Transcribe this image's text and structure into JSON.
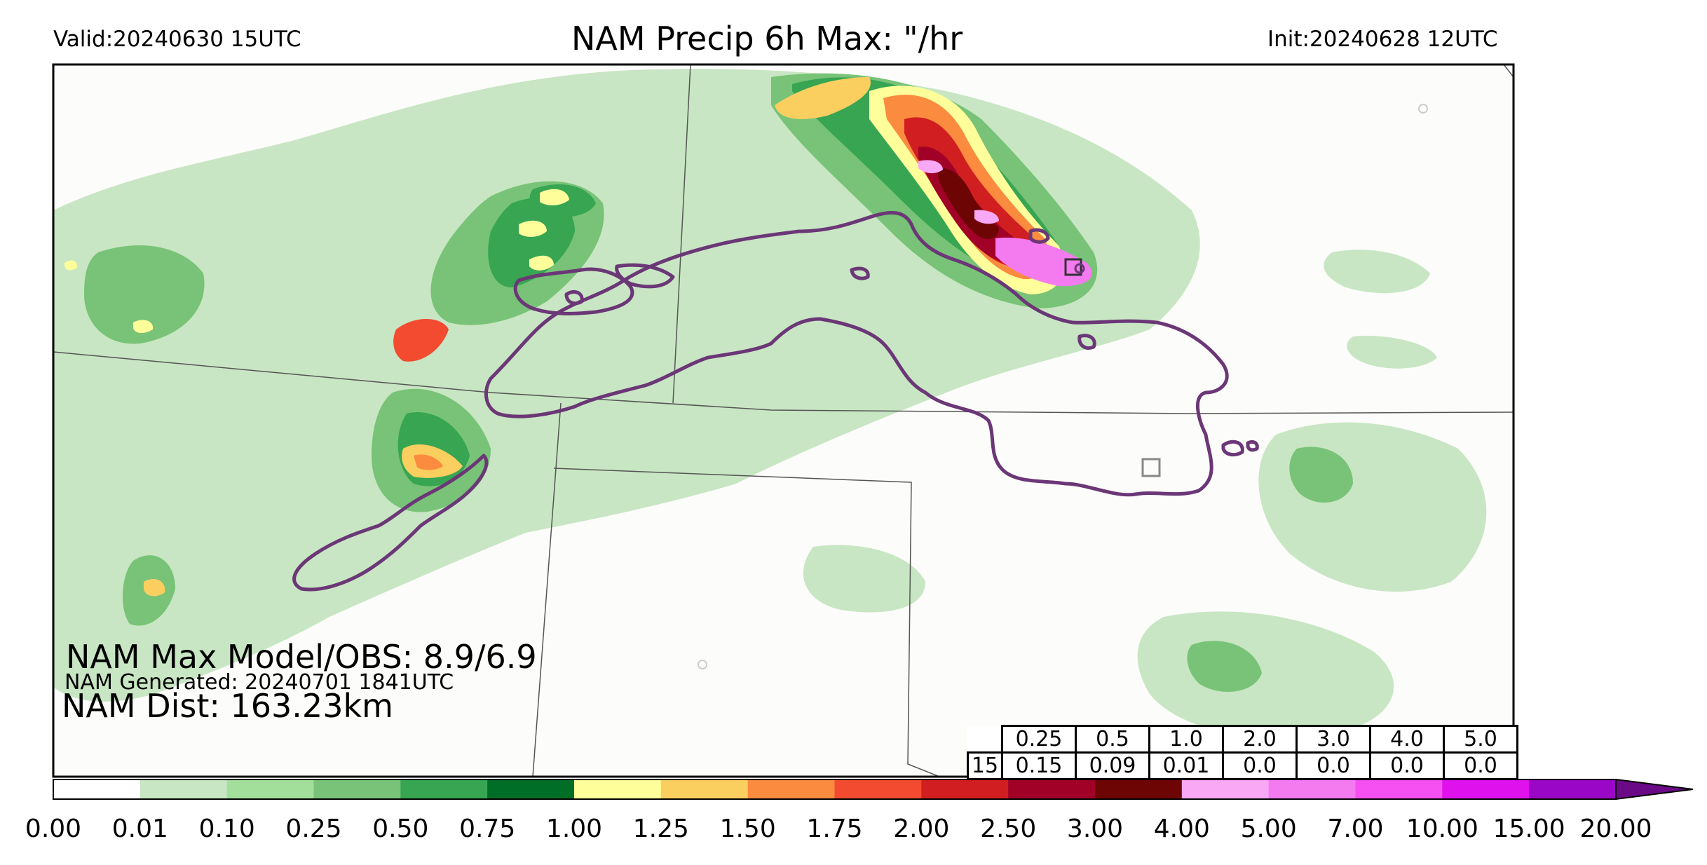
{
  "header": {
    "valid": "Valid:20240630 15UTC",
    "title": "NAM Precip 6h Max: \"/hr",
    "init": "Init:20240628 12UTC"
  },
  "stats": {
    "max_line": "NAM Max Model/OBS: 8.9/6.9",
    "generated_line": "NAM Generated: 20240701 1841UTC",
    "dist_line": "NAM Dist: 163.23km"
  },
  "table": {
    "thresholds": [
      "0.25",
      "0.5",
      "1.0",
      "2.0",
      "3.0",
      "4.0",
      "5.0"
    ],
    "row_label": "15",
    "values": [
      "0.15",
      "0.09",
      "0.01",
      "0.0",
      "0.0",
      "0.0",
      "0.0"
    ]
  },
  "colorbar": {
    "ticks": [
      "0.00",
      "0.01",
      "0.10",
      "0.25",
      "0.50",
      "0.75",
      "1.00",
      "1.25",
      "1.50",
      "1.75",
      "2.00",
      "2.50",
      "3.00",
      "4.00",
      "5.00",
      "7.00",
      "10.00",
      "15.00",
      "20.00"
    ],
    "colors": [
      "#ffffff",
      "#c8e6c3",
      "#a2df9a",
      "#78c377",
      "#37a552",
      "#016e28",
      "#fefe9a",
      "#fbcf5f",
      "#fb8b3f",
      "#f24b2f",
      "#d11e20",
      "#a20127",
      "#6e0505",
      "#f8a8f4",
      "#f47af0",
      "#f64ff2",
      "#df11ed",
      "#9a07c7",
      "#6a0a86"
    ]
  },
  "map_style": {
    "obs_contour_color": "#6b3777",
    "boundary_color": "#555555",
    "background": "#fcfcfa"
  }
}
